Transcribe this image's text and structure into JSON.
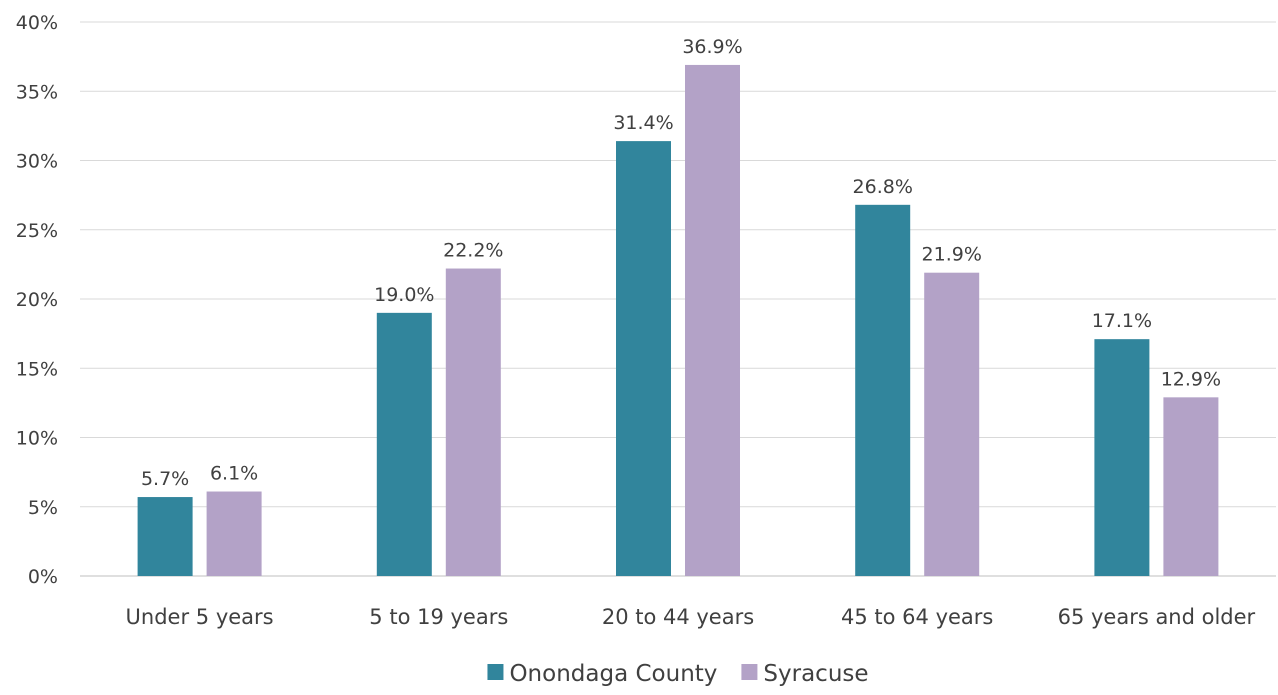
{
  "chart_data": {
    "type": "bar",
    "title": "",
    "xlabel": "",
    "ylabel": "",
    "categories": [
      "Under 5 years",
      "5 to 19 years",
      "20 to 44 years",
      "45 to 64 years",
      "65 years and older"
    ],
    "series": [
      {
        "name": "Onondaga County",
        "color": "#31859c",
        "values": [
          5.7,
          19.0,
          31.4,
          26.8,
          17.1
        ],
        "labels": [
          "5.7%",
          "19.0%",
          "31.4%",
          "26.8%",
          "17.1%"
        ]
      },
      {
        "name": "Syracuse",
        "color": "#b3a2c7",
        "values": [
          6.1,
          22.2,
          36.9,
          21.9,
          12.9
        ],
        "labels": [
          "6.1%",
          "22.2%",
          "36.9%",
          "21.9%",
          "12.9%"
        ]
      }
    ],
    "ylim": [
      0,
      40
    ],
    "yticks": [
      0,
      5,
      10,
      15,
      20,
      25,
      30,
      35,
      40
    ],
    "ytick_labels": [
      "0%",
      "5%",
      "10%",
      "15%",
      "20%",
      "25%",
      "30%",
      "35%",
      "40%"
    ],
    "grid": true,
    "legend_position": "bottom-center"
  }
}
